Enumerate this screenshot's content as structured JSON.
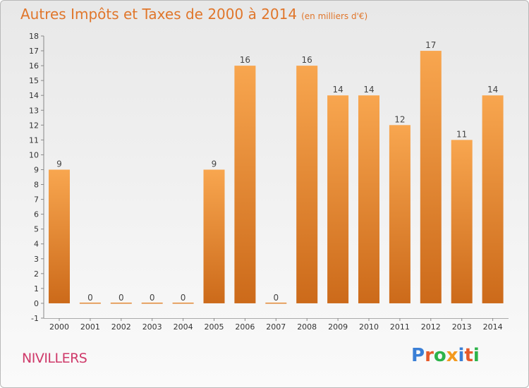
{
  "header": {
    "title": "Autres Impôts et Taxes de 2000 à 2014",
    "unit": "(en milliers d'€)"
  },
  "footer": {
    "commune": "NIVILLERS",
    "logo_text": "Proxiti"
  },
  "colors": {
    "title": "#e0762b",
    "commune": "#cf3a6a",
    "bar_top": "#f8a64f",
    "bar_bottom": "#cc6a1a",
    "logo": [
      "#3a7fd6",
      "#e65a2a",
      "#2db34a",
      "#f39a1e",
      "#3a7fd6",
      "#e65a2a",
      "#2db34a"
    ]
  },
  "chart_data": {
    "type": "bar",
    "categories": [
      "2000",
      "2001",
      "2002",
      "2003",
      "2004",
      "2005",
      "2006",
      "2007",
      "2008",
      "2009",
      "2010",
      "2011",
      "2012",
      "2013",
      "2014"
    ],
    "values": [
      9,
      0,
      0,
      0,
      0,
      9,
      16,
      0,
      16,
      14,
      14,
      12,
      17,
      11,
      14
    ],
    "ylim": [
      -1,
      18
    ],
    "yticks": [
      -1,
      0,
      1,
      2,
      3,
      4,
      5,
      6,
      7,
      8,
      9,
      10,
      11,
      12,
      13,
      14,
      15,
      16,
      17,
      18
    ],
    "grid": false,
    "data_labels": true
  }
}
